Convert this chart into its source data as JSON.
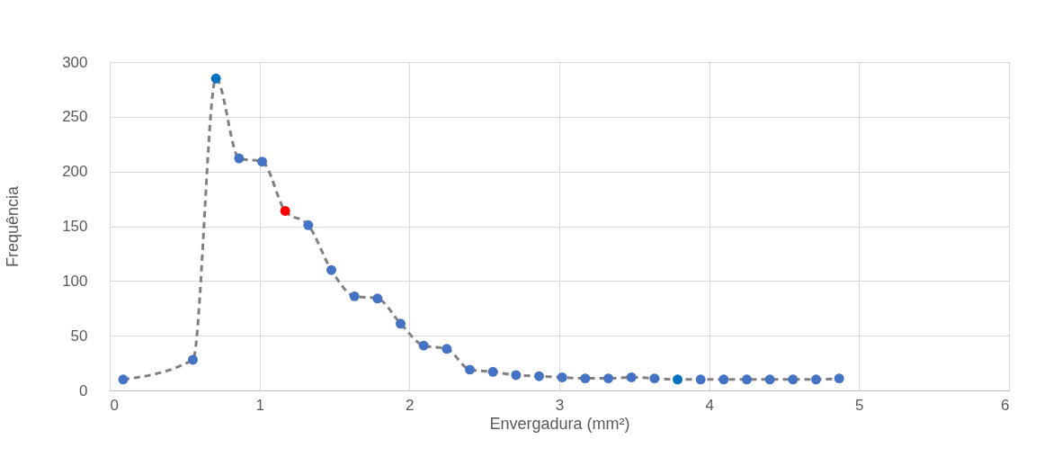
{
  "chart_data": {
    "type": "line",
    "xlabel": "Envergadura (mm²)",
    "ylabel": "Frequência",
    "xlim": [
      0,
      6
    ],
    "xticks": [
      0,
      1,
      2,
      3,
      4,
      5,
      6
    ],
    "ylim": [
      0,
      300
    ],
    "yticks": [
      0,
      50,
      100,
      150,
      200,
      250,
      300
    ],
    "grid": true,
    "marker": "circle",
    "line_style": "dashed",
    "series": [
      {
        "color": "#808080",
        "x": [
          0.09,
          0.555,
          0.709,
          0.863,
          1.017,
          1.171,
          1.325,
          1.479,
          1.633,
          1.787,
          1.941,
          2.095,
          2.249,
          2.403,
          2.557,
          2.711,
          2.865,
          3.019,
          3.173,
          3.327,
          3.481,
          3.635,
          3.789,
          3.943,
          4.097,
          4.251,
          4.405,
          4.559,
          4.713,
          4.867
        ],
        "values": [
          10,
          28,
          285,
          212,
          209,
          164,
          151,
          110,
          86,
          84,
          61,
          41,
          38,
          19,
          17,
          14,
          13,
          12,
          11,
          11,
          12,
          11,
          10,
          10,
          10,
          10,
          10,
          10,
          10,
          11
        ],
        "colors": [
          "#4472c4",
          "#4472c4",
          "#0070c0",
          "#4472c4",
          "#4472c4",
          "#ff0000",
          "#4472c4",
          "#4472c4",
          "#4472c4",
          "#4472c4",
          "#4472c4",
          "#4472c4",
          "#4472c4",
          "#4472c4",
          "#4472c4",
          "#4472c4",
          "#4472c4",
          "#4472c4",
          "#4472c4",
          "#4472c4",
          "#4472c4",
          "#4472c4",
          "#0070c0",
          "#4472c4",
          "#4472c4",
          "#4472c4",
          "#4472c4",
          "#4472c4",
          "#4472c4",
          "#4472c4"
        ]
      }
    ]
  }
}
